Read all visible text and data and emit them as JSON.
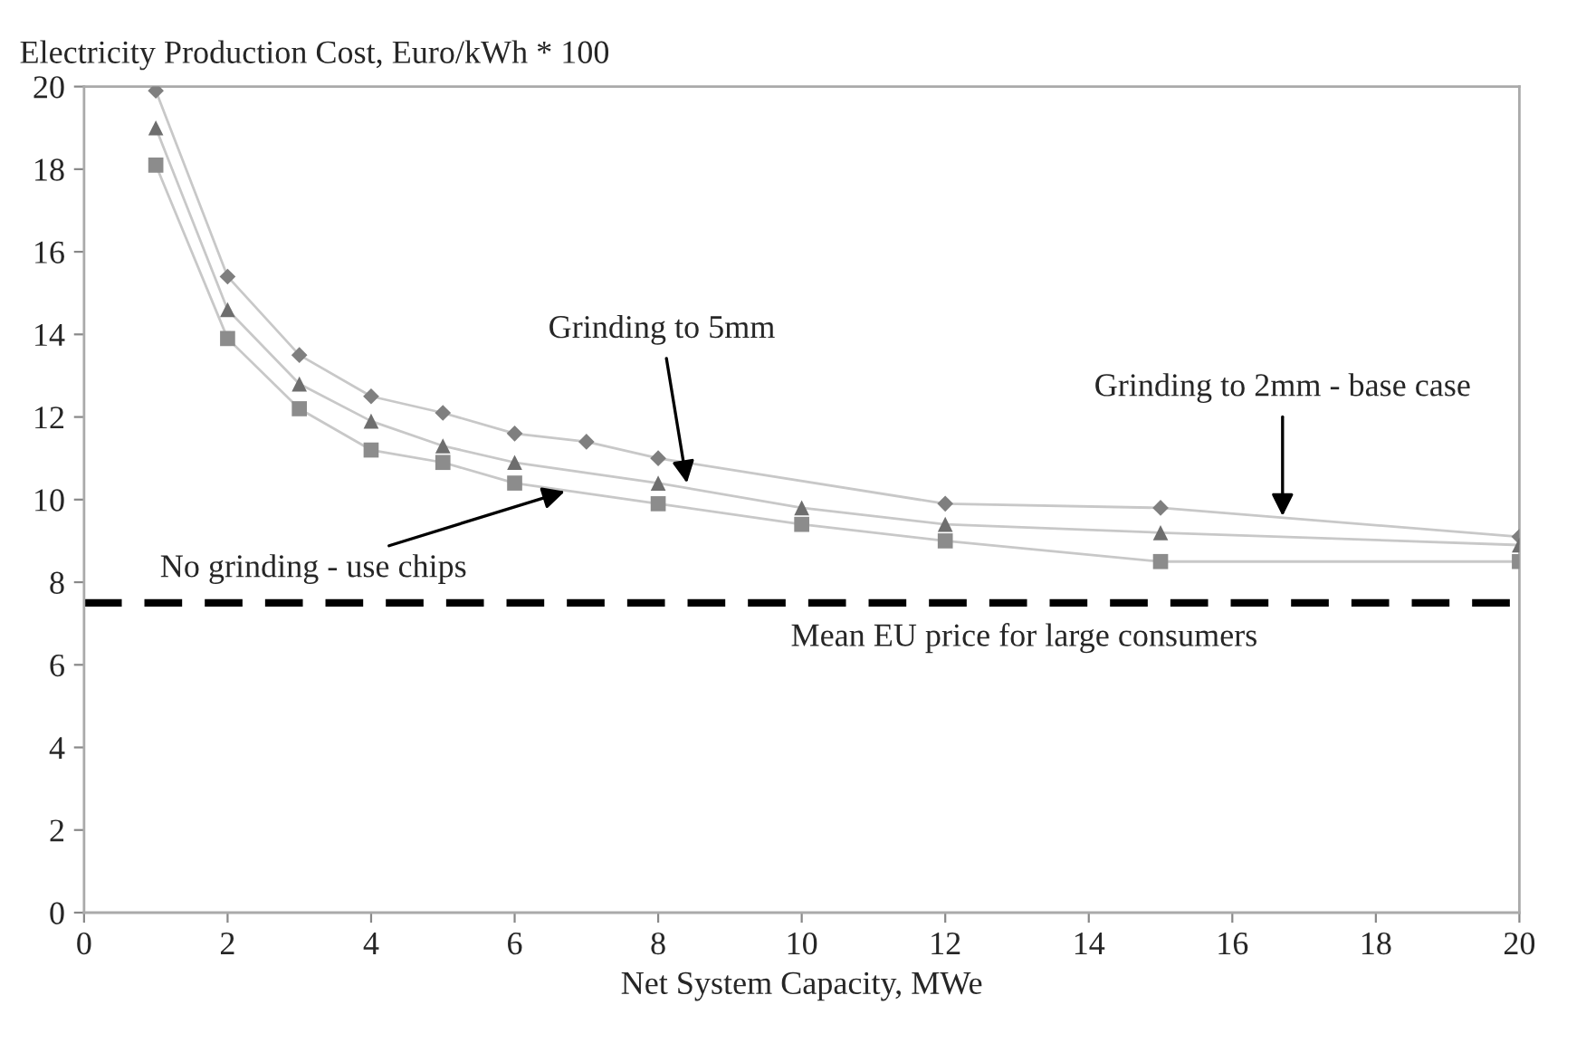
{
  "chart_data": {
    "type": "line",
    "ylabel": "Electricity Production Cost, Euro/kWh * 100",
    "xlabel": "Net System Capacity, MWe",
    "xlim": [
      0,
      20
    ],
    "xticks": [
      0,
      2,
      4,
      6,
      8,
      10,
      12,
      14,
      16,
      18,
      20
    ],
    "ylim": [
      0,
      20
    ],
    "yticks": [
      0,
      2,
      4,
      6,
      8,
      10,
      12,
      14,
      16,
      18,
      20
    ],
    "grid": false,
    "legend": false,
    "series": [
      {
        "color": "#7f7f7f",
        "marker": "diamond",
        "x": [
          1,
          2,
          3,
          4,
          5,
          6,
          7,
          8,
          12,
          15,
          20
        ],
        "values": [
          19.9,
          15.4,
          13.5,
          12.5,
          12.1,
          11.6,
          11.4,
          11.0,
          9.9,
          9.8,
          9.1
        ]
      },
      {
        "color": "#6e6e6e",
        "marker": "triangle",
        "x": [
          1,
          2,
          3,
          4,
          5,
          6,
          8,
          10,
          12,
          15,
          20
        ],
        "values": [
          19.0,
          14.6,
          12.8,
          11.9,
          11.3,
          10.9,
          10.4,
          9.8,
          9.4,
          9.2,
          8.9
        ]
      },
      {
        "color": "#8c8c8c",
        "marker": "square",
        "x": [
          1,
          2,
          3,
          4,
          5,
          6,
          8,
          10,
          12,
          15,
          20
        ],
        "values": [
          18.1,
          13.9,
          12.2,
          11.2,
          10.9,
          10.4,
          9.9,
          9.4,
          9.0,
          8.5,
          8.5
        ]
      }
    ],
    "ref_lines": [
      {
        "axis": "y",
        "value": 7.5,
        "label": "Mean EU price for large consumers",
        "color": "#000000",
        "line_style": "dashed"
      }
    ],
    "annotations": [
      {
        "text": "Grinding to 5mm",
        "x": 8.4,
        "y": 10.4
      },
      {
        "text": "Grinding to 2mm - base case",
        "x": 16.7,
        "y": 9.6
      },
      {
        "text": "No grinding - use chips",
        "x": 6.7,
        "y": 10.2
      }
    ]
  }
}
